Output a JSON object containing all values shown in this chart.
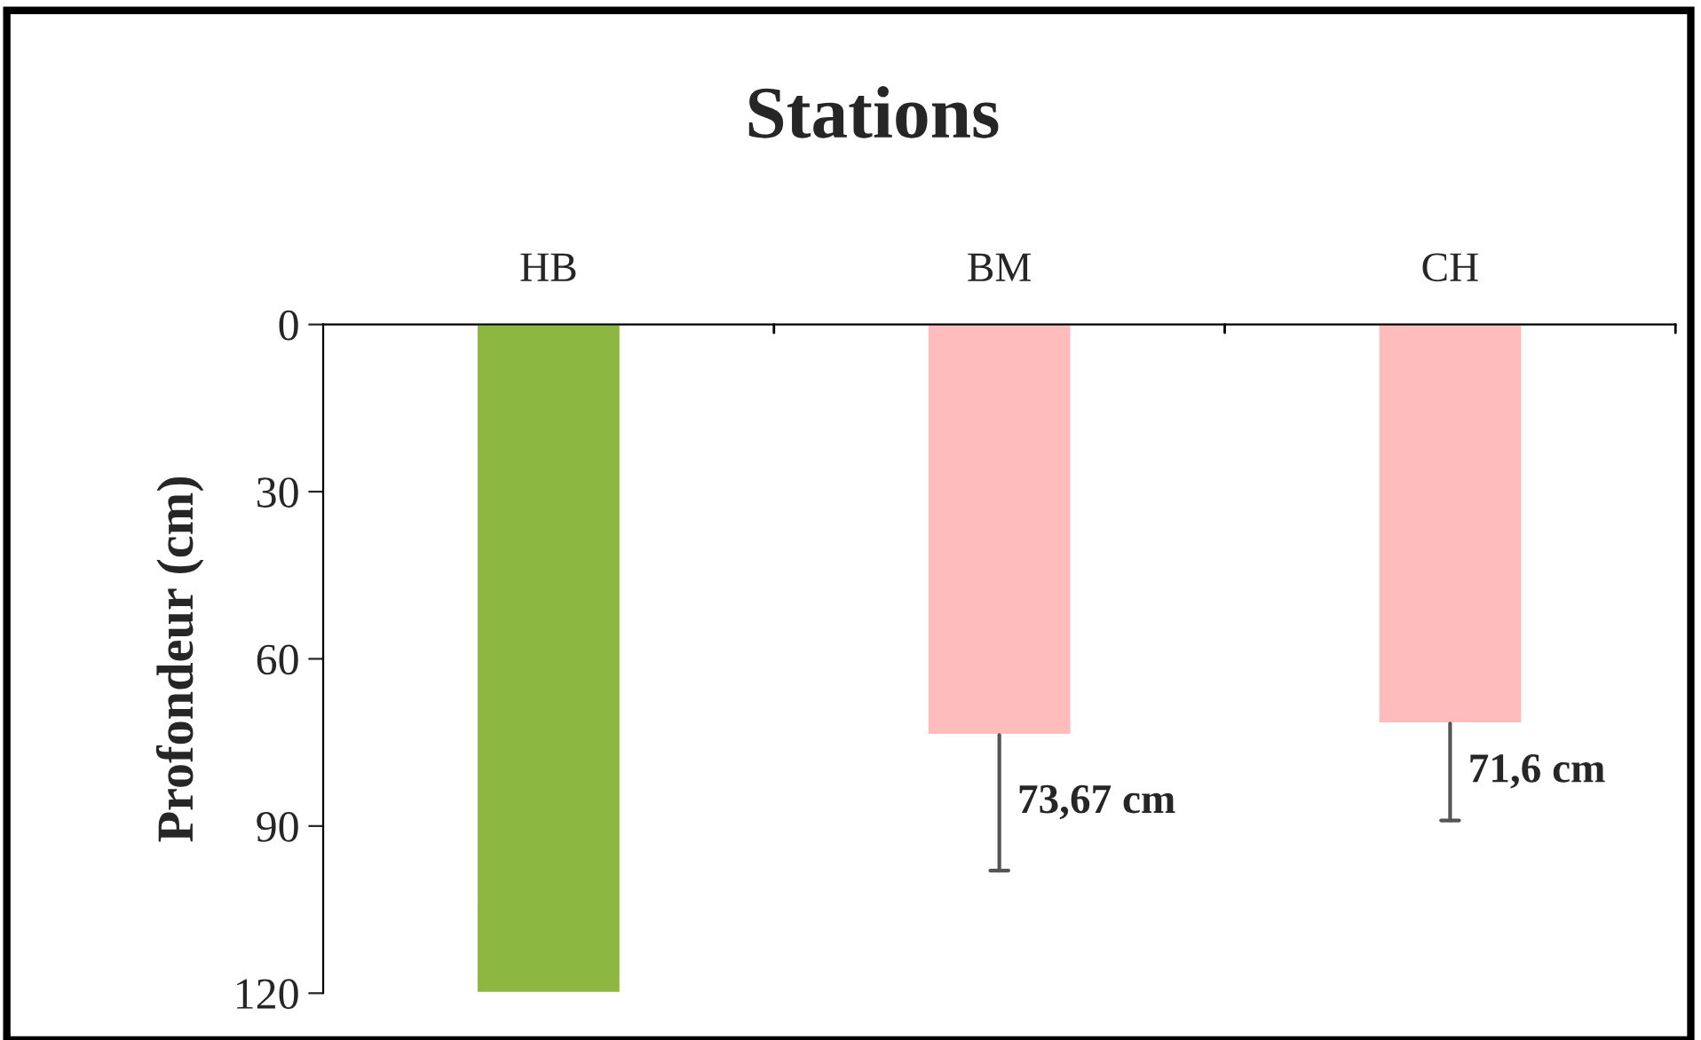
{
  "chart_data": {
    "type": "bar",
    "title": "Stations",
    "ylabel": "Profondeur (cm)",
    "categories": [
      "HB",
      "BM",
      "CH"
    ],
    "values": [
      120,
      73.67,
      71.6
    ],
    "colors": [
      "#8cb842",
      "#ffbcbc",
      "#ffbcbc"
    ],
    "errors": [
      null,
      [
        73.67,
        98
      ],
      [
        71.6,
        89
      ]
    ],
    "value_labels": [
      null,
      "73,67 cm",
      "71,6 cm"
    ],
    "ylim": [
      120,
      0
    ],
    "yticks": [
      0,
      30,
      60,
      90,
      120
    ],
    "grid": false
  }
}
